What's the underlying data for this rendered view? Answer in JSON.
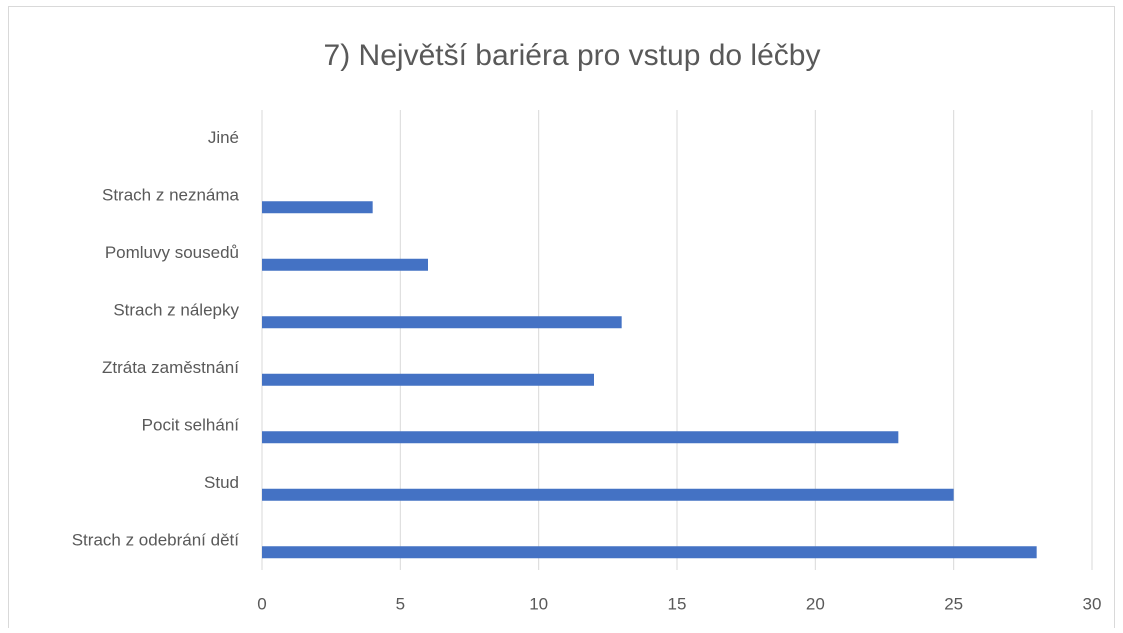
{
  "chart_data": {
    "type": "bar",
    "orientation": "horizontal",
    "title": "7) Největší bariéra pro vstup do léčby",
    "categories": [
      "Jiné",
      "Strach z neznáma",
      "Pomluvy sousedů",
      "Strach z nálepky",
      "Ztráta zaměstnání",
      "Pocit selhání",
      "Stud",
      "Strach z odebrání dětí"
    ],
    "values": [
      0,
      4,
      6,
      13,
      12,
      23,
      25,
      28
    ],
    "color": "#4472c4",
    "xlim": [
      0,
      30
    ],
    "xticks": [
      0,
      5,
      10,
      15,
      20,
      25,
      30
    ],
    "grid": true
  }
}
